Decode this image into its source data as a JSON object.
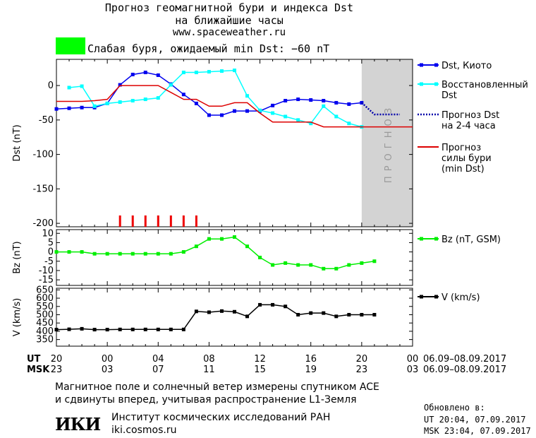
{
  "header": {
    "title_line1": "Прогноз геомагнитной бури и индекса Dst",
    "title_line2": "на ближайшие часы",
    "site": "www.spaceweather.ru"
  },
  "status": {
    "text": "Слабая буря, ожидаемый min Dst: −60 nT",
    "color": "#00ff00"
  },
  "time_axis": {
    "ut_label": "UT",
    "msk_label": "MSK",
    "ut_ticks": [
      "20",
      "00",
      "04",
      "08",
      "12",
      "16",
      "20",
      "00"
    ],
    "msk_ticks": [
      "23",
      "03",
      "07",
      "11",
      "15",
      "19",
      "23",
      "03"
    ],
    "date_range": "06.09–08.09.2017"
  },
  "chart_data": [
    {
      "type": "line",
      "ylabel": "Dst (nT)",
      "ylim": [
        -205,
        38
      ],
      "yticks": [
        0,
        -50,
        -100,
        -150,
        -200
      ],
      "x_hours_range": [
        20,
        48
      ],
      "forecast_band": {
        "x": [
          44,
          48
        ],
        "label": "ПРОГНОЗ"
      },
      "storm_markers_x": [
        25,
        26,
        27,
        28,
        29,
        30,
        31
      ],
      "series": [
        {
          "name": "Dst, Киото",
          "color": "#0000ee",
          "marker": "square",
          "x": [
            20,
            21,
            22,
            23,
            24,
            25,
            26,
            27,
            28,
            29,
            30,
            31,
            32,
            33,
            34,
            35,
            36,
            37,
            38,
            39,
            40,
            41,
            42,
            43,
            44
          ],
          "y": [
            -34,
            -33,
            -32,
            -32,
            -26,
            1,
            16,
            19,
            15,
            2,
            -13,
            -26,
            -43,
            -43,
            -37,
            -37,
            -37,
            -29,
            -22,
            -20,
            -21,
            -22,
            -25,
            -27,
            -25
          ]
        },
        {
          "name": "Восстановленный Dst",
          "color": "#00ffff",
          "marker": "square",
          "x": [
            21,
            22,
            23,
            24,
            25,
            26,
            27,
            28,
            29,
            30,
            31,
            32,
            33,
            34,
            35,
            36,
            37,
            38,
            39,
            40,
            41,
            42,
            43,
            44
          ],
          "y": [
            -3,
            -1,
            -30,
            -26,
            -24,
            -22,
            -20,
            -18,
            1,
            19,
            19,
            20,
            21,
            22,
            -15,
            -36,
            -40,
            -45,
            -50,
            -55,
            -30,
            -45,
            -55,
            -60
          ]
        },
        {
          "name": "Прогноз Dst на 2-4 часа",
          "color": "#0000aa",
          "style": "dotted",
          "x": [
            44,
            45,
            46,
            47
          ],
          "y": [
            -25,
            -42,
            -42,
            -42
          ]
        },
        {
          "name": "Прогноз силы бури (min Dst)",
          "color": "#dd0000",
          "x": [
            20,
            21,
            22,
            23,
            24,
            25,
            26,
            27,
            28,
            29,
            30,
            31,
            32,
            33,
            34,
            35,
            36,
            37,
            38,
            39,
            40,
            41,
            42,
            43,
            44,
            45,
            46,
            47,
            48
          ],
          "y": [
            -23,
            -23,
            -23,
            -22,
            -20,
            0,
            0,
            0,
            0,
            -10,
            -20,
            -20,
            -30,
            -30,
            -25,
            -25,
            -40,
            -53,
            -53,
            -53,
            -53,
            -60,
            -60,
            -60,
            -60,
            -60,
            -60,
            -60,
            -60
          ]
        }
      ]
    },
    {
      "type": "line",
      "ylabel": "Bz (nT)",
      "ylim": [
        -18,
        12
      ],
      "yticks": [
        10,
        5,
        0,
        -5,
        -10,
        -15
      ],
      "series": [
        {
          "name": "Bz (nT, GSM)",
          "color": "#00ee00",
          "marker": "square",
          "x": [
            20,
            21,
            22,
            23,
            24,
            25,
            26,
            27,
            28,
            29,
            30,
            31,
            32,
            33,
            34,
            35,
            36,
            37,
            38,
            39,
            40,
            41,
            42,
            43,
            44,
            45
          ],
          "y": [
            0,
            0,
            0,
            -1,
            -1,
            -1,
            -1,
            -1,
            -1,
            -1,
            0,
            3,
            7,
            7,
            8,
            3,
            -3,
            -7,
            -6,
            -7,
            -7,
            -9,
            -9,
            -7,
            -6,
            -5
          ]
        }
      ]
    },
    {
      "type": "line",
      "ylabel": "V (km/s)",
      "ylim": [
        310,
        660
      ],
      "yticks": [
        650,
        600,
        550,
        500,
        450,
        400,
        350
      ],
      "series": [
        {
          "name": "V (km/s)",
          "color": "#000000",
          "marker": "square",
          "x": [
            20,
            21,
            22,
            23,
            24,
            25,
            26,
            27,
            28,
            29,
            30,
            31,
            32,
            33,
            34,
            35,
            36,
            37,
            38,
            39,
            40,
            41,
            42,
            43,
            44,
            45
          ],
          "y": [
            410,
            412,
            415,
            410,
            410,
            411,
            411,
            411,
            411,
            411,
            411,
            520,
            515,
            522,
            518,
            490,
            560,
            560,
            550,
            500,
            510,
            510,
            490,
            500,
            500,
            500
          ]
        }
      ]
    }
  ],
  "footer": {
    "note_line1": "Магнитное поле и солнечный ветер измерены спутником ACE",
    "note_line2": "и сдвинуты вперед, учитывая распространение L1-Земля",
    "logo": "ИКИ",
    "institute": "Институт космических исследований РАН",
    "institute_url": "iki.cosmos.ru"
  },
  "updated": {
    "label": "Обновлено в:",
    "ut": "UT  20:04, 07.09.2017",
    "msk": "MSK 23:04, 07.09.2017"
  }
}
